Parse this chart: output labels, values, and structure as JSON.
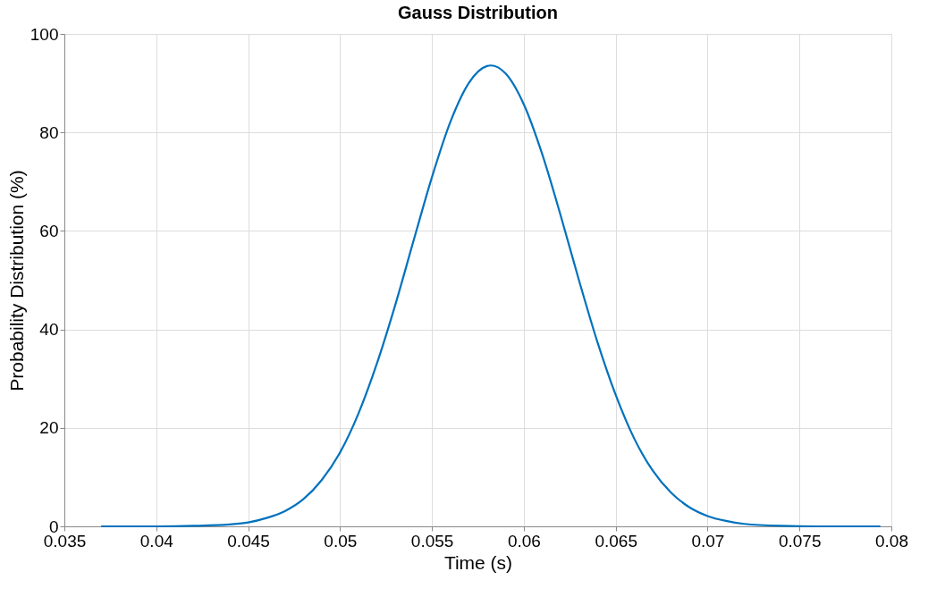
{
  "chart_data": {
    "type": "line",
    "title": "Gauss Distribution",
    "xlabel": "Time (s)",
    "ylabel": "Probability Distribution (%)",
    "x": [
      0.037,
      0.04,
      0.042,
      0.044,
      0.045,
      0.046,
      0.047,
      0.048,
      0.049,
      0.05,
      0.051,
      0.052,
      0.053,
      0.054,
      0.055,
      0.056,
      0.057,
      0.058,
      0.0582,
      0.059,
      0.06,
      0.061,
      0.062,
      0.063,
      0.064,
      0.065,
      0.066,
      0.067,
      0.068,
      0.069,
      0.07,
      0.071,
      0.072,
      0.074,
      0.076,
      0.0794
    ],
    "series": [
      {
        "color": "#0072bd",
        "values": [
          0,
          0,
          0.1,
          0.4,
          0.8,
          1.7,
          3.1,
          5.5,
          9.4,
          15.0,
          22.9,
          33.0,
          44.9,
          58.0,
          70.9,
          82.1,
          90.0,
          93.5,
          93.6,
          92.0,
          85.7,
          75.6,
          63.2,
          50.0,
          37.5,
          26.7,
          17.9,
          11.4,
          6.9,
          3.9,
          2.1,
          1.1,
          0.5,
          0.1,
          0,
          0
        ]
      }
    ],
    "xlim": [
      0.035,
      0.08
    ],
    "xticks": [
      0.035,
      0.04,
      0.045,
      0.05,
      0.055,
      0.06,
      0.065,
      0.07,
      0.075,
      0.08
    ],
    "ylim": [
      0,
      100
    ],
    "yticks": [
      0,
      20,
      40,
      60,
      80,
      100
    ],
    "grid": true,
    "marker": "none",
    "line_style": "solid"
  }
}
